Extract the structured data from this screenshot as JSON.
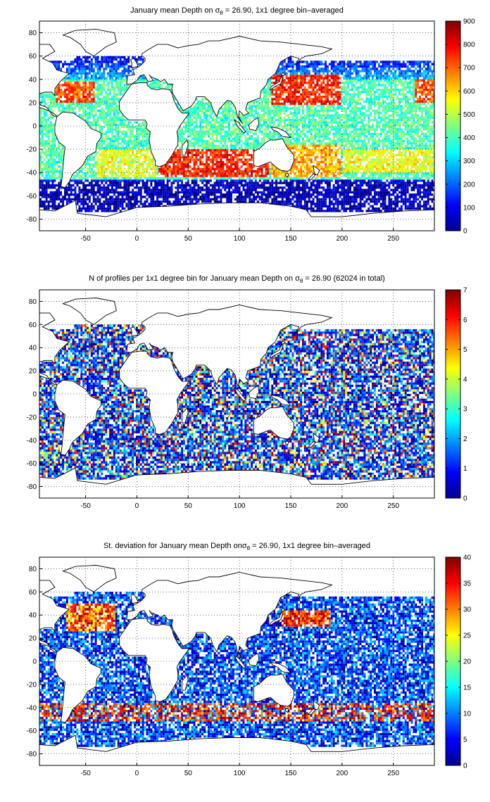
{
  "chart_data": [
    {
      "type": "heatmap",
      "title": "January mean Depth on σθ = 26.90, 1x1 degree bin–averaged",
      "title_parts": {
        "pre": "January mean Depth on ",
        "sym": "σ",
        "sub": "θ",
        "post": " = 26.90, 1x1 degree bin–averaged"
      },
      "xlim": [
        -95,
        290
      ],
      "ylim": [
        -90,
        90
      ],
      "xticks": [
        -50,
        0,
        50,
        100,
        150,
        200,
        250
      ],
      "yticks": [
        80,
        60,
        40,
        20,
        0,
        -20,
        -40,
        -60,
        -80
      ],
      "colorbar": {
        "min": 0,
        "max": 900,
        "ticks": [
          900,
          800,
          700,
          600,
          500,
          400,
          300,
          200,
          100,
          0
        ]
      },
      "grid": true,
      "colormap": "jet"
    },
    {
      "type": "heatmap",
      "title": "N of profiles per 1x1 degree bin for January mean Depth on σθ = 26.90 (62024 in total)",
      "title_parts": {
        "pre": "N of profiles per 1x1 degree bin for January mean Depth on ",
        "sym": "σ",
        "sub": "θ",
        "post": " = 26.90 (62024 in total)"
      },
      "xlim": [
        -95,
        290
      ],
      "ylim": [
        -90,
        90
      ],
      "xticks": [
        -50,
        0,
        50,
        100,
        150,
        200,
        250
      ],
      "yticks": [
        80,
        60,
        40,
        20,
        0,
        -20,
        -40,
        -60,
        -80
      ],
      "colorbar": {
        "min": 0,
        "max": 7,
        "ticks": [
          7,
          6,
          5,
          4,
          3,
          2,
          1,
          0
        ]
      },
      "grid": true,
      "colormap": "jet"
    },
    {
      "type": "heatmap",
      "title": "St. deviation for January mean Depth onσθ = 26.90, 1x1 degree bin–averaged",
      "title_parts": {
        "pre": "St. deviation for January mean Depth on",
        "sym": "σ",
        "sub": "θ",
        "post": " = 26.90, 1x1 degree bin–averaged"
      },
      "xlim": [
        -95,
        290
      ],
      "ylim": [
        -90,
        90
      ],
      "xticks": [
        -50,
        0,
        50,
        100,
        150,
        200,
        250
      ],
      "yticks": [
        80,
        60,
        40,
        20,
        0,
        -20,
        -40,
        -60,
        -80
      ],
      "colorbar": {
        "min": 0,
        "max": 40,
        "ticks": [
          40,
          35,
          30,
          25,
          20,
          15,
          10,
          5,
          0
        ]
      },
      "grid": true,
      "colormap": "jet"
    }
  ]
}
